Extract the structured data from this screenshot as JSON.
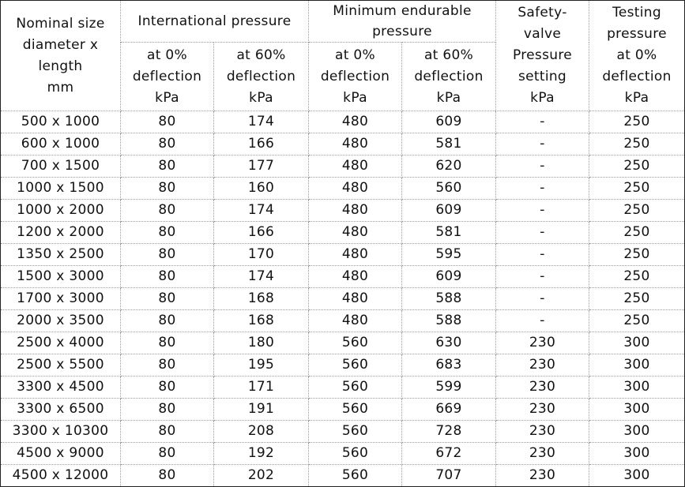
{
  "table": {
    "header": {
      "row1": [
        [
          "Nominal size",
          "diameter x",
          "length",
          "mm"
        ],
        [
          "International pressure"
        ],
        [
          "Minimum endurable",
          "pressure"
        ],
        [
          "Safety-",
          "valve",
          "Pressure",
          "setting",
          "kPa"
        ],
        [
          "Testing",
          "pressure",
          "at 0%",
          "deflection",
          "kPa"
        ]
      ],
      "row2": [
        [
          "at 0%",
          "deflection",
          "kPa"
        ],
        [
          "at 60%",
          "deflection",
          "kPa"
        ],
        [
          "at 0%",
          "deflection",
          "kPa"
        ],
        [
          "at 60%",
          "deflection",
          "kPa"
        ]
      ]
    },
    "rows": [
      [
        "500 x 1000",
        80,
        174,
        480,
        609,
        "-",
        250
      ],
      [
        "600 x 1000",
        80,
        166,
        480,
        581,
        "-",
        250
      ],
      [
        "700 x 1500",
        80,
        177,
        480,
        620,
        "-",
        250
      ],
      [
        "1000 x 1500",
        80,
        160,
        480,
        560,
        "-",
        250
      ],
      [
        "1000 x 2000",
        80,
        174,
        480,
        609,
        "-",
        250
      ],
      [
        "1200 x 2000",
        80,
        166,
        480,
        581,
        "-",
        250
      ],
      [
        "1350 x 2500",
        80,
        170,
        480,
        595,
        "-",
        250
      ],
      [
        "1500 x 3000",
        80,
        174,
        480,
        609,
        "-",
        250
      ],
      [
        "1700 x 3000",
        80,
        168,
        480,
        588,
        "-",
        250
      ],
      [
        "2000 x 3500",
        80,
        168,
        480,
        588,
        "-",
        250
      ],
      [
        "2500 x 4000",
        80,
        180,
        560,
        630,
        230,
        300
      ],
      [
        "2500 x 5500",
        80,
        195,
        560,
        683,
        230,
        300
      ],
      [
        "3300 x 4500",
        80,
        171,
        560,
        599,
        230,
        300
      ],
      [
        "3300 x 6500",
        80,
        191,
        560,
        669,
        230,
        300
      ],
      [
        "3300 x 10300",
        80,
        208,
        560,
        728,
        230,
        300
      ],
      [
        "4500 x 9000",
        80,
        192,
        560,
        672,
        230,
        300
      ],
      [
        "4500 x 12000",
        80,
        202,
        560,
        707,
        230,
        300
      ]
    ]
  }
}
